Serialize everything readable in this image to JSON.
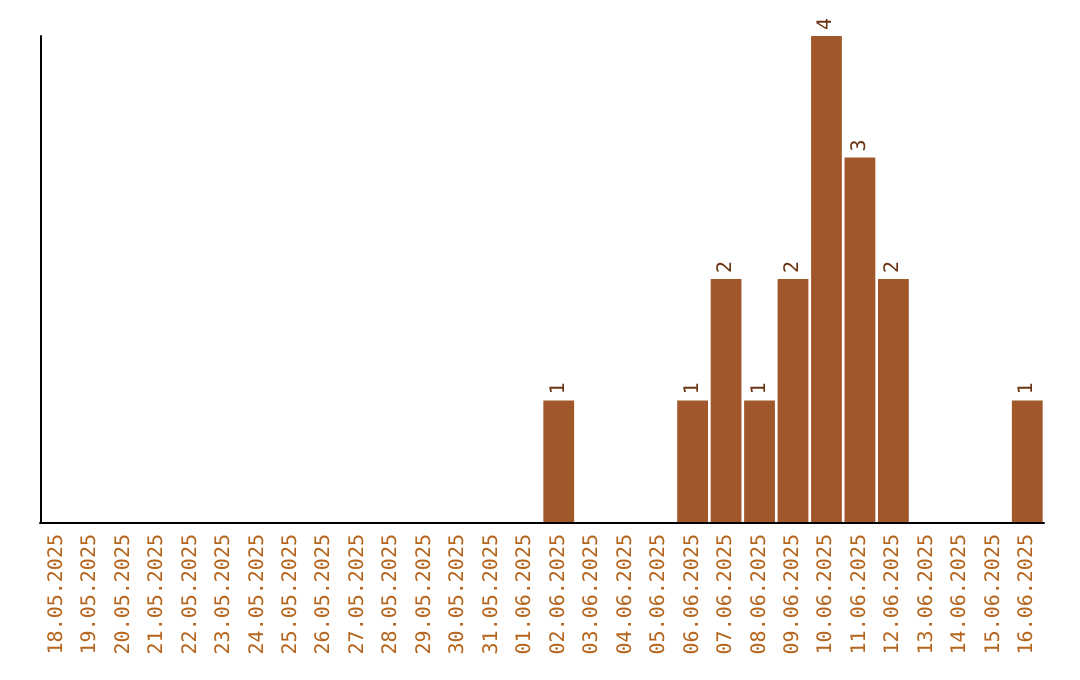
{
  "chart_data": {
    "type": "bar",
    "categories": [
      "18.05.2025",
      "19.05.2025",
      "20.05.2025",
      "21.05.2025",
      "22.05.2025",
      "23.05.2025",
      "24.05.2025",
      "25.05.2025",
      "26.05.2025",
      "27.05.2025",
      "28.05.2025",
      "29.05.2025",
      "30.05.2025",
      "31.05.2025",
      "01.06.2025",
      "02.06.2025",
      "03.06.2025",
      "04.06.2025",
      "05.06.2025",
      "06.06.2025",
      "07.06.2025",
      "08.06.2025",
      "09.06.2025",
      "10.06.2025",
      "11.06.2025",
      "12.06.2025",
      "13.06.2025",
      "14.06.2025",
      "15.06.2025",
      "16.06.2025"
    ],
    "values": [
      null,
      null,
      null,
      null,
      null,
      null,
      null,
      null,
      null,
      null,
      null,
      null,
      null,
      null,
      null,
      1,
      null,
      null,
      null,
      1,
      2,
      1,
      2,
      4,
      3,
      2,
      null,
      null,
      null,
      1
    ],
    "data_labels": true,
    "color": "#a0572a",
    "grid": false
  }
}
